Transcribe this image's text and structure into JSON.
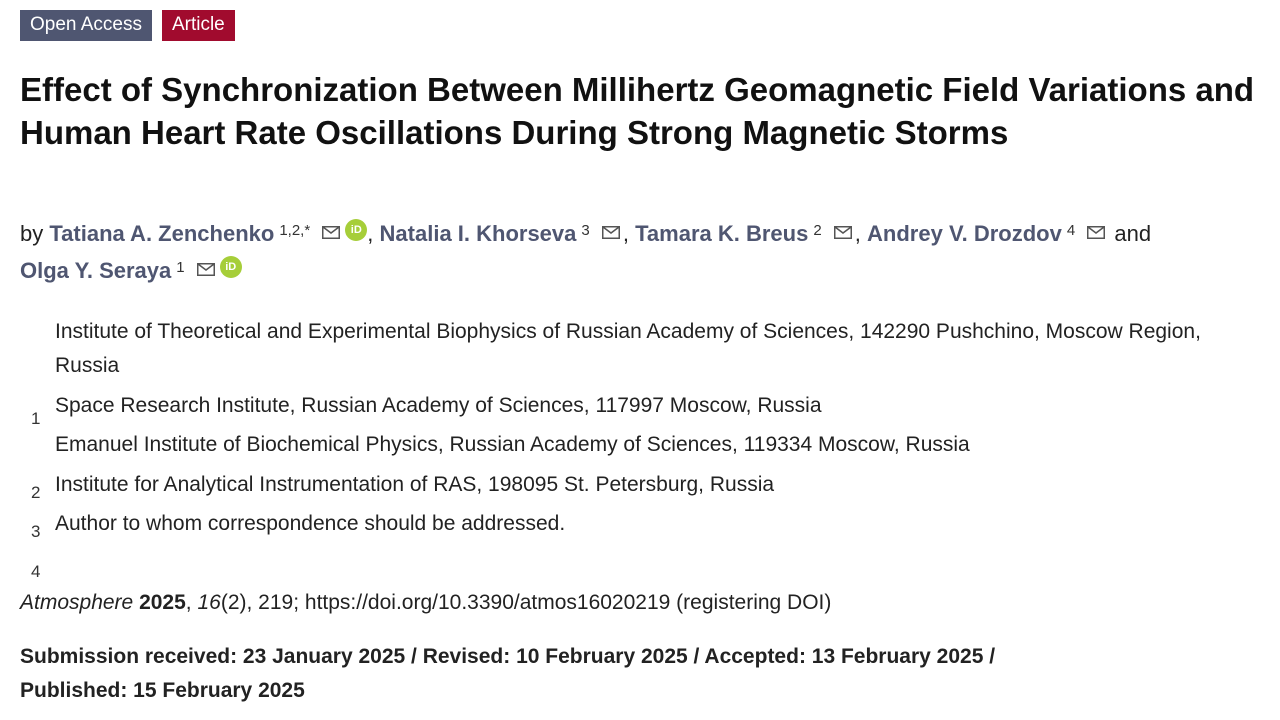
{
  "badges": {
    "open_access": "Open Access",
    "article": "Article"
  },
  "title": "Effect of Synchronization Between Millihertz Geomagnetic Field Variations and Human Heart Rate Oscillations During Strong Magnetic Storms",
  "byline": {
    "prefix": "by",
    "conjunction": "and"
  },
  "authors": [
    {
      "name": "Tatiana A. Zenchenko",
      "sup": "1,2,*",
      "email_icon": "mail-icon",
      "orcid": true
    },
    {
      "name": "Natalia I. Khorseva",
      "sup": "3",
      "email_icon": "mail-icon",
      "orcid": false
    },
    {
      "name": "Tamara K. Breus",
      "sup": "2",
      "email_icon": "mail-icon",
      "orcid": false
    },
    {
      "name": "Andrey V. Drozdov",
      "sup": "4",
      "email_icon": "mail-icon",
      "orcid": false
    },
    {
      "name": "Olga Y. Seraya",
      "sup": "1",
      "email_icon": "mail-icon",
      "orcid": true
    }
  ],
  "orcid_label": "iD",
  "affiliations": [
    "Institute of Theoretical and Experimental Biophysics of Russian Academy of Sciences, 142290 Pushchino, Moscow Region, Russia",
    "Space Research Institute, Russian Academy of Sciences, 117997 Moscow, Russia",
    "Emanuel Institute of Biochemical Physics, Russian Academy of Sciences, 119334 Moscow, Russia",
    "Institute for Analytical Instrumentation of RAS, 198095 St. Petersburg, Russia",
    "Author to whom correspondence should be addressed."
  ],
  "affiliation_numbers": [
    "1",
    "2",
    "3",
    "4"
  ],
  "citation": {
    "journal": "Atmosphere",
    "year": "2025",
    "volume": "16",
    "issue": "(2)",
    "pages": ", 219; ",
    "doi": "https://doi.org/10.3390/atmos16020219",
    "doi_note": " (registering DOI)"
  },
  "dates": {
    "line1": "Submission received: 23 January 2025 / Revised: 10 February 2025 / Accepted: 13 February 2025 /",
    "line2": "Published: 15 February 2025"
  },
  "colors": {
    "author_link": "#4f5671",
    "badge_open_access": "#4f5671",
    "badge_article": "#a10b2e",
    "orcid_green": "#a6ce39"
  }
}
